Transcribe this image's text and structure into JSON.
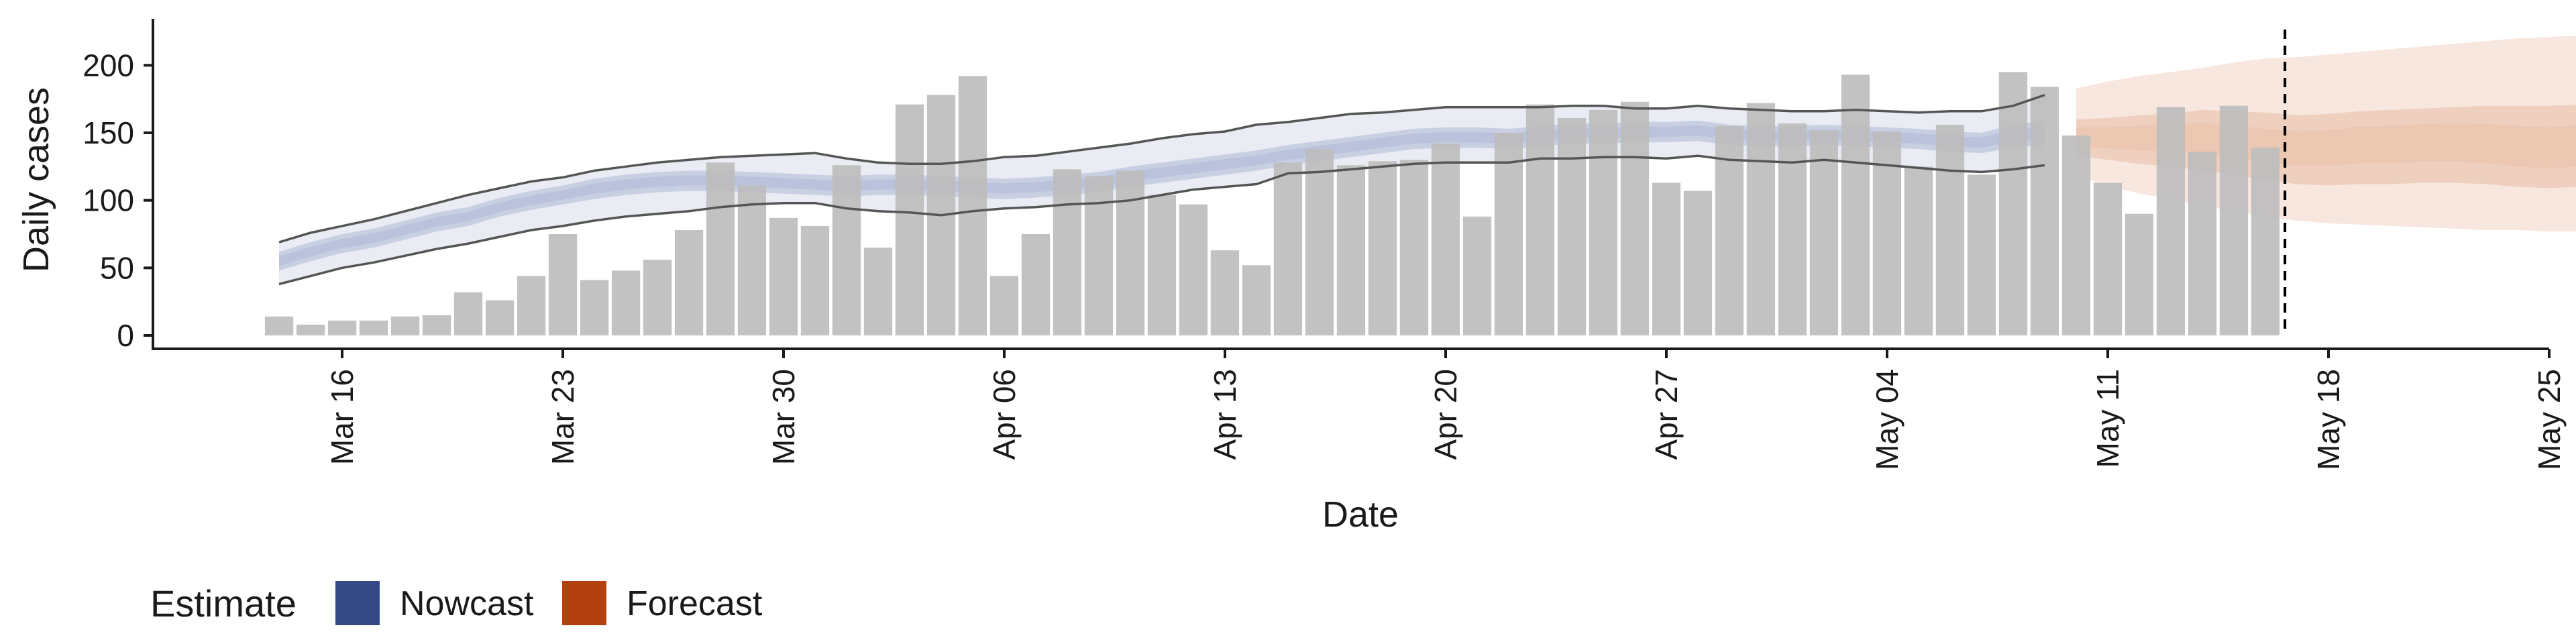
{
  "chart_data": {
    "type": "bar",
    "xlabel": "Date",
    "ylabel": "Daily cases",
    "ylim": [
      0,
      225
    ],
    "y_ticks": [
      0,
      50,
      100,
      150,
      200
    ],
    "x_range": [
      "2020-03-10",
      "2020-05-25"
    ],
    "x_ticks": [
      {
        "date": "2020-03-16",
        "label": "Mar 16"
      },
      {
        "date": "2020-03-23",
        "label": "Mar 23"
      },
      {
        "date": "2020-03-30",
        "label": "Mar 30"
      },
      {
        "date": "2020-04-06",
        "label": "Apr 06"
      },
      {
        "date": "2020-04-13",
        "label": "Apr 13"
      },
      {
        "date": "2020-04-20",
        "label": "Apr 20"
      },
      {
        "date": "2020-04-27",
        "label": "Apr 27"
      },
      {
        "date": "2020-05-04",
        "label": "May 04"
      },
      {
        "date": "2020-05-11",
        "label": "May 11"
      },
      {
        "date": "2020-05-18",
        "label": "May 18"
      },
      {
        "date": "2020-05-25",
        "label": "May 25"
      }
    ],
    "grid": false,
    "reported_cases": {
      "start_date": "2020-03-14",
      "values": [
        14,
        8,
        11,
        11,
        14,
        15,
        32,
        26,
        44,
        75,
        41,
        48,
        56,
        78,
        128,
        111,
        87,
        81,
        126,
        65,
        171,
        178,
        192,
        44,
        75,
        123,
        118,
        122,
        104,
        97,
        63,
        52,
        128,
        138,
        126,
        129,
        130,
        142,
        88,
        150,
        171,
        161,
        167,
        173,
        113,
        107,
        155,
        172,
        157,
        152,
        193,
        151,
        125,
        156,
        119,
        195,
        184,
        148,
        113,
        90,
        169,
        136,
        170,
        139
      ]
    },
    "nowcast": {
      "start_date": "2020-03-14",
      "median": [
        55,
        62,
        68,
        72,
        78,
        84,
        88,
        95,
        100,
        104,
        109,
        112,
        114,
        115,
        115,
        114,
        113,
        112,
        111,
        112,
        112,
        111,
        110,
        109,
        110,
        112,
        114,
        118,
        121,
        124,
        127,
        130,
        134,
        137,
        140,
        143,
        146,
        147,
        147,
        146,
        148,
        150,
        150,
        151,
        151,
        152,
        149,
        148,
        148,
        149,
        148,
        147,
        146,
        144,
        143,
        148,
        150
      ],
      "ci50_lower": [
        48,
        55,
        61,
        65,
        71,
        77,
        81,
        88,
        93,
        97,
        101,
        104,
        106,
        107,
        107,
        106,
        105,
        104,
        103,
        104,
        104,
        103,
        102,
        101,
        102,
        104,
        106,
        110,
        113,
        116,
        119,
        122,
        126,
        129,
        132,
        135,
        138,
        139,
        139,
        138,
        140,
        142,
        142,
        143,
        143,
        144,
        141,
        140,
        140,
        141,
        140,
        139,
        138,
        136,
        135,
        139,
        141
      ],
      "ci50_upper": [
        62,
        69,
        75,
        79,
        85,
        91,
        95,
        102,
        107,
        111,
        116,
        119,
        121,
        122,
        122,
        121,
        120,
        119,
        118,
        119,
        119,
        118,
        117,
        116,
        117,
        119,
        121,
        125,
        128,
        131,
        134,
        137,
        141,
        144,
        147,
        150,
        153,
        154,
        154,
        153,
        155,
        157,
        157,
        158,
        158,
        159,
        156,
        155,
        155,
        156,
        155,
        154,
        153,
        151,
        150,
        156,
        159
      ],
      "ci90_lower": [
        38,
        44,
        50,
        54,
        59,
        64,
        68,
        73,
        78,
        81,
        85,
        88,
        90,
        92,
        95,
        97,
        98,
        98,
        94,
        92,
        91,
        89,
        92,
        94,
        95,
        97,
        98,
        100,
        104,
        108,
        110,
        112,
        120,
        121,
        123,
        125,
        127,
        128,
        128,
        128,
        131,
        131,
        132,
        132,
        131,
        133,
        130,
        129,
        128,
        130,
        128,
        126,
        124,
        122,
        121,
        123,
        126
      ],
      "ci90_upper": [
        69,
        76,
        81,
        86,
        92,
        98,
        104,
        109,
        114,
        117,
        122,
        125,
        128,
        130,
        132,
        133,
        134,
        135,
        131,
        128,
        127,
        127,
        129,
        132,
        133,
        136,
        139,
        142,
        146,
        149,
        151,
        156,
        158,
        161,
        164,
        165,
        167,
        169,
        169,
        169,
        169,
        170,
        170,
        168,
        168,
        170,
        168,
        167,
        166,
        166,
        167,
        166,
        165,
        166,
        166,
        170,
        178
      ]
    },
    "forecast": {
      "start_date": "2020-05-10",
      "median": [
        148,
        147,
        147,
        148,
        148,
        145,
        141,
        139,
        140,
        143,
        143,
        145,
        145,
        143,
        140,
        138,
        140,
        141,
        140,
        139,
        137,
        136
      ],
      "ci50_lower": [
        133,
        130,
        127,
        125,
        122,
        119,
        115,
        112,
        111,
        112,
        112,
        113,
        113,
        112,
        110,
        109,
        110,
        111,
        110,
        109,
        108,
        108
      ],
      "ci50_upper": [
        160,
        161,
        163,
        164,
        167,
        166,
        165,
        163,
        164,
        166,
        167,
        168,
        169,
        170,
        170,
        170,
        171,
        172,
        170,
        168,
        167,
        166
      ],
      "ci90_lower": [
        118,
        111,
        105,
        101,
        96,
        92,
        88,
        85,
        83,
        82,
        81,
        80,
        79,
        78,
        78,
        77,
        77,
        76,
        75,
        74,
        73,
        70
      ],
      "ci90_upper": [
        183,
        188,
        192,
        195,
        198,
        202,
        205,
        206,
        208,
        210,
        212,
        214,
        216,
        218,
        220,
        221,
        222,
        224,
        224,
        225,
        225,
        225
      ]
    },
    "forecast_cutoff_date": "2020-05-16",
    "legend": {
      "title": "Estimate",
      "position": "bottom-left",
      "items": [
        {
          "label": "Nowcast",
          "color": "#344a87"
        },
        {
          "label": "Forecast",
          "color": "#b3400f"
        }
      ]
    },
    "colors": {
      "bars": "#bdbdbd",
      "nowcast_band": "#9aa8ca",
      "forecast_band": "#e3aa8c",
      "ci90_line": "#555555",
      "axis": "#1a1a1a",
      "cutoff_line": "#000000"
    }
  }
}
